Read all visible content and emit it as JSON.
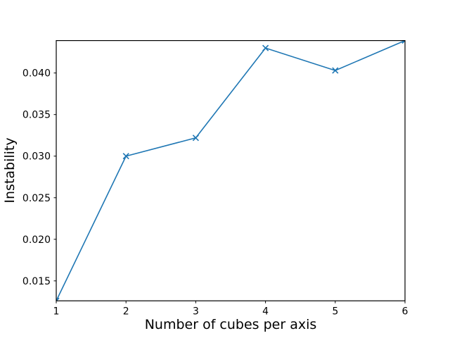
{
  "figure": {
    "background_color": "#ffffff",
    "axis_color": "#000000",
    "text_color": "#000000"
  },
  "chart_data": {
    "type": "line",
    "title": "",
    "xlabel": "Number of cubes per axis",
    "ylabel": "Instability",
    "x": [
      1,
      2,
      3,
      4,
      5,
      6
    ],
    "series": [
      {
        "name": "instability",
        "values": [
          0.0126,
          0.03,
          0.0322,
          0.043,
          0.0403,
          0.0439
        ],
        "color": "#1f77b4",
        "marker": "x"
      }
    ],
    "xlim": [
      1,
      6
    ],
    "ylim": [
      0.0126,
      0.0439
    ],
    "xticks": {
      "values": [
        1,
        2,
        3,
        4,
        5,
        6
      ],
      "labels": [
        "1",
        "2",
        "3",
        "4",
        "5",
        "6"
      ]
    },
    "yticks": {
      "values": [
        0.015,
        0.02,
        0.025,
        0.03,
        0.035,
        0.04
      ],
      "labels": [
        "0.015",
        "0.020",
        "0.025",
        "0.030",
        "0.035",
        "0.040"
      ]
    },
    "grid": false,
    "legend": "none"
  }
}
